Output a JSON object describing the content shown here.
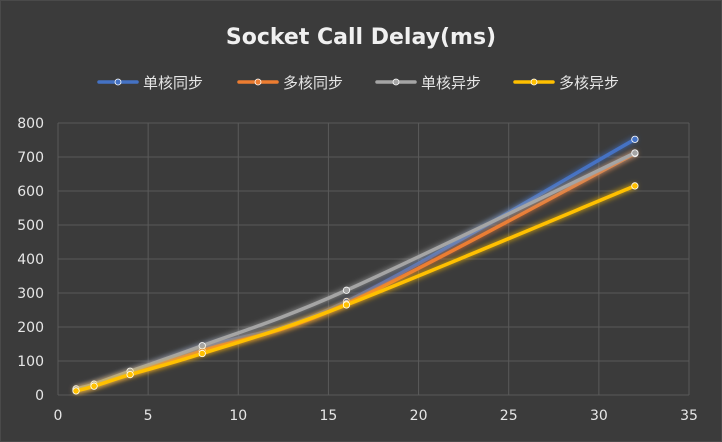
{
  "chart_data": {
    "type": "line",
    "title": "Socket Call Delay(ms)",
    "xlabel": "",
    "ylabel": "",
    "xlim": [
      0,
      35
    ],
    "ylim": [
      0,
      800
    ],
    "x_ticks": [
      0,
      5,
      10,
      15,
      20,
      25,
      30,
      35
    ],
    "y_ticks": [
      0,
      100,
      200,
      300,
      400,
      500,
      600,
      700,
      800
    ],
    "grid": true,
    "legend_position": "top",
    "x": [
      1,
      2,
      4,
      8,
      16,
      32
    ],
    "series": [
      {
        "name": "单核同步",
        "color": "#4472C4",
        "values": [
          15,
          30,
          65,
          140,
          275,
          752
        ]
      },
      {
        "name": "多核同步",
        "color": "#ED7D31",
        "values": [
          14,
          28,
          62,
          130,
          268,
          710
        ]
      },
      {
        "name": "单核异步",
        "color": "#A5A5A5",
        "values": [
          18,
          32,
          70,
          145,
          308,
          712
        ]
      },
      {
        "name": "多核异步",
        "color": "#FFC000",
        "values": [
          12,
          26,
          60,
          122,
          265,
          615
        ]
      }
    ]
  }
}
